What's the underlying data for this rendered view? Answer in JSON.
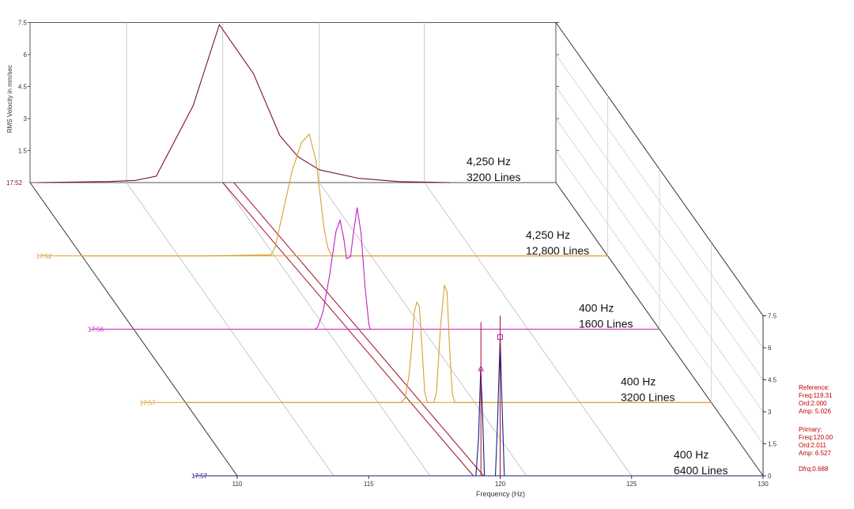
{
  "chart_data": {
    "type": "line",
    "title": "",
    "xlabel": "Frequency (Hz)",
    "ylabel": "RMS Velocity in mm/sec",
    "xlim": [
      110,
      130
    ],
    "ylim": [
      0,
      7.5
    ],
    "x_ticks": [
      "110",
      "115",
      "120",
      "125",
      "130"
    ],
    "y_ticks": [
      "0",
      "1.5",
      "3",
      "4.5",
      "6",
      "7.5"
    ],
    "back_y_ticks": [
      "1.5",
      "3",
      "4.5",
      "6",
      "7.5"
    ],
    "series": [
      {
        "time": "17:52",
        "annotation": [
          "4,250 Hz",
          "3200 Lines"
        ],
        "color": "#7a0f3c",
        "points": [
          [
            110.3,
            0
          ],
          [
            113,
            0.05
          ],
          [
            114,
            0.1
          ],
          [
            114.8,
            0.3
          ],
          [
            116.2,
            3.6
          ],
          [
            117.2,
            7.4
          ],
          [
            118.5,
            5.1
          ],
          [
            119.5,
            2.2
          ],
          [
            120.2,
            1.2
          ],
          [
            121,
            0.6
          ],
          [
            122.5,
            0.2
          ],
          [
            124,
            0.05
          ],
          [
            126,
            0
          ]
        ]
      },
      {
        "time": "17:52",
        "annotation": [
          "4,250 Hz",
          "12,800 Lines"
        ],
        "color": "#d9a030",
        "points": [
          [
            110,
            0
          ],
          [
            114.6,
            0
          ],
          [
            117.2,
            0.05
          ],
          [
            117.35,
            0.4
          ],
          [
            117.55,
            1.5
          ],
          [
            118.0,
            4.0
          ],
          [
            118.35,
            5.3
          ],
          [
            118.65,
            5.7
          ],
          [
            118.9,
            4.5
          ],
          [
            119.05,
            3.0
          ],
          [
            119.2,
            1.4
          ],
          [
            119.35,
            0.4
          ],
          [
            119.5,
            0
          ],
          [
            130,
            0
          ]
        ]
      },
      {
        "time": "17:56",
        "annotation": [
          "400 Hz",
          "1600 Lines"
        ],
        "color": "#c21ec0",
        "points": [
          [
            110,
            0
          ],
          [
            116.9,
            0
          ],
          [
            117.0,
            0.1
          ],
          [
            117.2,
            0.8
          ],
          [
            117.45,
            2.5
          ],
          [
            117.7,
            4.6
          ],
          [
            117.85,
            5.1
          ],
          [
            118.0,
            4.2
          ],
          [
            118.1,
            3.3
          ],
          [
            118.25,
            3.4
          ],
          [
            118.35,
            4.4
          ],
          [
            118.5,
            5.7
          ],
          [
            118.65,
            4.5
          ],
          [
            118.8,
            2.0
          ],
          [
            118.95,
            0.2
          ],
          [
            119.0,
            0
          ],
          [
            130,
            0
          ]
        ]
      },
      {
        "time": "17:57",
        "annotation": [
          "400 Hz",
          "3200 Lines"
        ],
        "color": "#d9a030",
        "points": [
          [
            110,
            0
          ],
          [
            118.2,
            0
          ],
          [
            118.35,
            0.2
          ],
          [
            118.5,
            1.2
          ],
          [
            118.6,
            2.5
          ],
          [
            118.7,
            4.2
          ],
          [
            118.8,
            4.7
          ],
          [
            118.9,
            4.5
          ],
          [
            119.0,
            2.5
          ],
          [
            119.1,
            0.5
          ],
          [
            119.2,
            0
          ],
          [
            119.45,
            0
          ],
          [
            119.55,
            0.5
          ],
          [
            119.7,
            3.5
          ],
          [
            119.85,
            5.5
          ],
          [
            119.95,
            5.2
          ],
          [
            120.05,
            2.5
          ],
          [
            120.15,
            0.4
          ],
          [
            120.25,
            0
          ],
          [
            130,
            0
          ]
        ]
      },
      {
        "time": "17:57",
        "annotation": [
          "400 Hz",
          "6400 Lines"
        ],
        "color": "#1a1a8a",
        "points": [
          [
            110,
            0
          ],
          [
            119.08,
            0
          ],
          [
            119.18,
            1.8
          ],
          [
            119.26,
            5.0
          ],
          [
            119.33,
            3.0
          ],
          [
            119.4,
            0
          ],
          [
            119.82,
            0
          ],
          [
            119.9,
            2.5
          ],
          [
            120.0,
            6.5
          ],
          [
            120.08,
            3.0
          ],
          [
            120.16,
            0
          ],
          [
            130,
            0
          ]
        ]
      }
    ],
    "cursor": {
      "reference": {
        "label": "Reference:",
        "freq": "Freq:119.31",
        "ord": "Ord:2.000",
        "amp": "Amp: 5.026"
      },
      "primary": {
        "label": "Primary:",
        "freq": "Freq:120.00",
        "ord": "Ord:2.011",
        "amp": "Amp: 6.527"
      },
      "dfrq": "Dfrq:0.688"
    }
  }
}
